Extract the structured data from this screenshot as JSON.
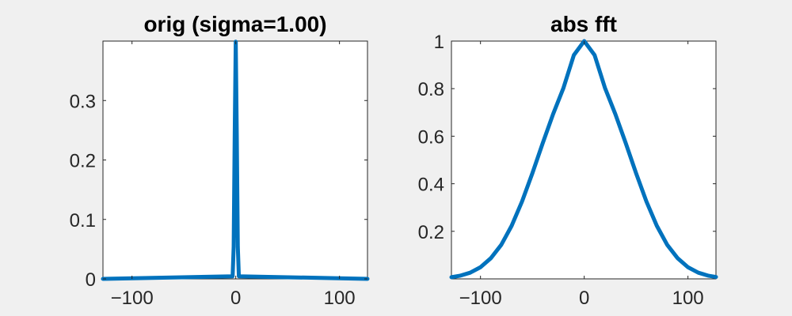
{
  "colors": {
    "background": "#f0f0f0",
    "axes_background": "#ffffff",
    "axes_color": "#262626",
    "line": "#0072bd"
  },
  "chart_data": [
    {
      "type": "line",
      "title": "orig (sigma=1.00)",
      "xlabel": "",
      "ylabel": "",
      "xlim": [
        -128,
        127
      ],
      "ylim": [
        0,
        0.4
      ],
      "xticks": [
        -100,
        0,
        100
      ],
      "xtick_labels": [
        "-100",
        "0",
        "100"
      ],
      "yticks": [
        0,
        0.1,
        0.2,
        0.3
      ],
      "ytick_labels": [
        "0",
        "0.1",
        "0.2",
        "0.3"
      ],
      "grid": false,
      "series": [
        {
          "x": [
            -128,
            -3,
            -2,
            -1,
            0,
            1,
            2,
            3,
            127
          ],
          "values": [
            0,
            0.0044,
            0.054,
            0.242,
            0.399,
            0.242,
            0.054,
            0.0044,
            0
          ]
        }
      ]
    },
    {
      "type": "line",
      "title": "abs fft",
      "xlabel": "",
      "ylabel": "",
      "xlim": [
        -128,
        127
      ],
      "ylim": [
        0,
        1
      ],
      "xticks": [
        -100,
        0,
        100
      ],
      "xtick_labels": [
        "-100",
        "0",
        "100"
      ],
      "yticks": [
        0.2,
        0.4,
        0.6,
        0.8,
        1
      ],
      "ytick_labels": [
        "0.2",
        "0.4",
        "0.6",
        "0.8",
        "1"
      ],
      "grid": false,
      "series": [
        {
          "x": [
            -128,
            -120,
            -110,
            -100,
            -90,
            -80,
            -70,
            -60,
            -50,
            -40,
            -30,
            -20,
            -10,
            0,
            10,
            20,
            30,
            40,
            50,
            60,
            70,
            80,
            90,
            100,
            110,
            120,
            127
          ],
          "values": [
            0.007,
            0.013,
            0.026,
            0.049,
            0.087,
            0.143,
            0.223,
            0.325,
            0.444,
            0.571,
            0.693,
            0.803,
            0.941,
            1,
            0.941,
            0.803,
            0.693,
            0.571,
            0.444,
            0.325,
            0.223,
            0.143,
            0.087,
            0.049,
            0.026,
            0.013,
            0.008
          ]
        }
      ]
    }
  ]
}
